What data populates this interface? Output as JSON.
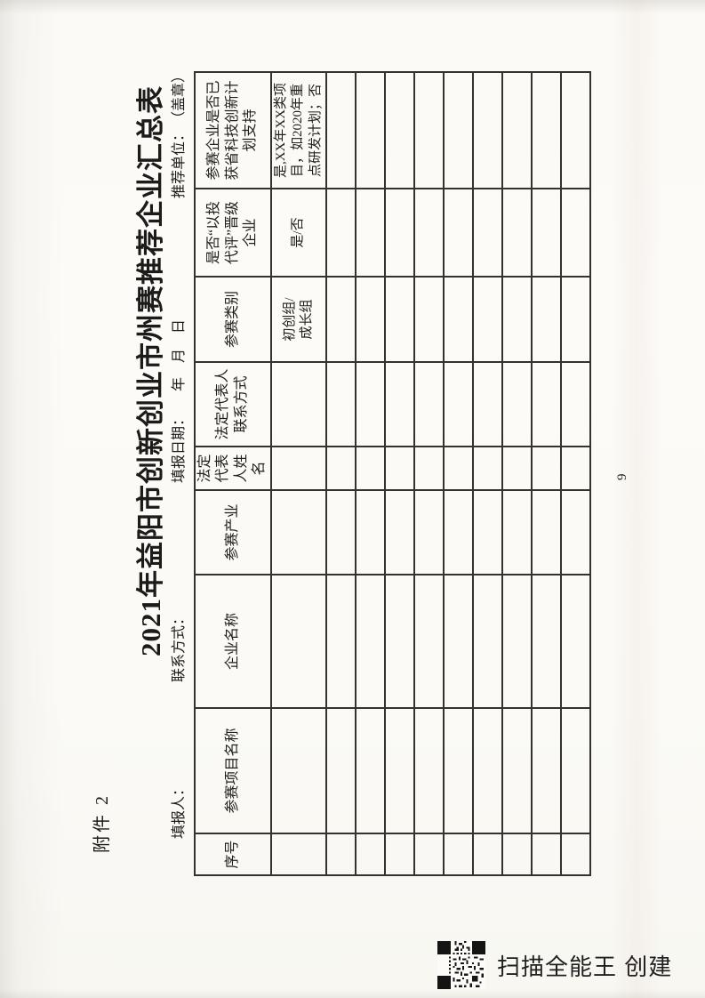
{
  "document": {
    "attachment_label": "附件 2",
    "title": "2021年益阳市创新创业市州赛推荐企业汇总表",
    "info_row": {
      "filler_label": "填报人：",
      "contact_label": "联系方式：",
      "date_label": "填报日期：",
      "year": "年",
      "month": "月",
      "day": "日",
      "recommender_label": "推荐单位：",
      "seal_note": "（盖章）"
    },
    "table": {
      "headers": [
        "序号",
        "参赛项目名称",
        "企业名称",
        "参赛产业",
        "法定代表\n人姓名",
        "法定代表人\n联系方式",
        "参赛类别",
        "是否“以投\n代评”晋级\n企业",
        "参赛企业是否已\n获省科技创新计\n划支持"
      ],
      "example_row": [
        "",
        "",
        "",
        "",
        "",
        "",
        "初创组/\n成长组",
        "是/否",
        "是,XX年XX类项\n目，如2020年重\n点研发计划；否"
      ],
      "empty_row_count": 9
    },
    "page_number": "9"
  },
  "watermark": {
    "label": "扫描全能王 创建"
  },
  "colors": {
    "paper": "#fcfbf8",
    "table_line": "#34322e",
    "text": "#1c1b19"
  }
}
